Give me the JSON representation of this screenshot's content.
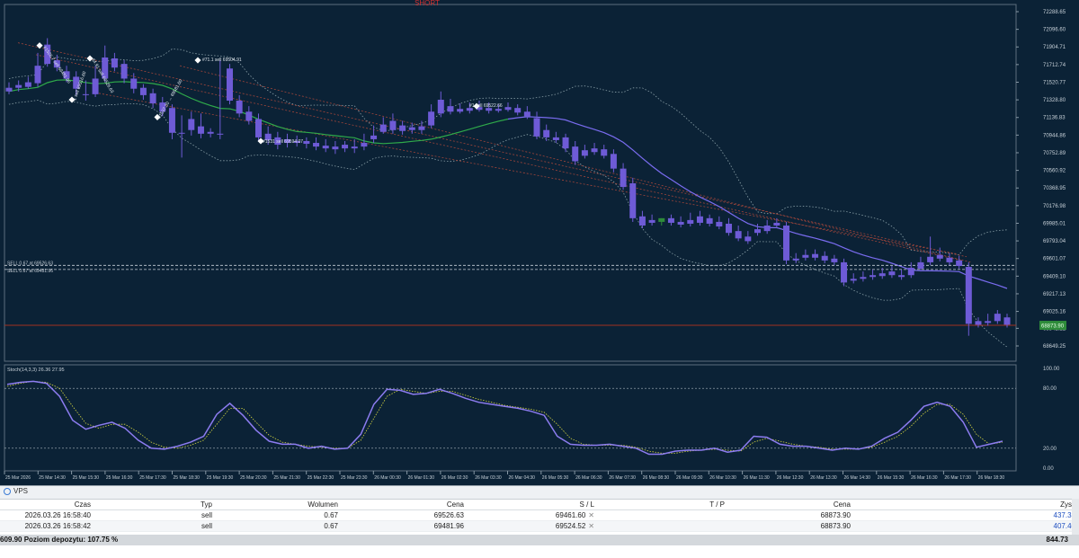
{
  "signal_label": "SHORT",
  "colors": {
    "background": "#0b2236",
    "bull": "#2e8b3a",
    "bear": "#6e5bd6",
    "ma_mid": "#2faa4a",
    "ma_trail": "#7a6cf0",
    "band": "#8aa0a8",
    "trend": "#a0453a",
    "stoch_main": "#8c7cf0",
    "stoch_signal": "#d8d840",
    "price_line": "#a03020",
    "bid_box": "#2e8b3a",
    "current_price_text": "#9fe0a0"
  },
  "price_scale": [
    "72288.65",
    "72096.60",
    "71904.71",
    "71712.74",
    "71520.77",
    "71328.80",
    "71136.83",
    "70944.86",
    "70752.89",
    "70560.92",
    "70368.95",
    "70176.98",
    "69985.01",
    "69793.04",
    "69601.07",
    "69409.10",
    "69217.13",
    "69025.16",
    "68841.22",
    "68649.25"
  ],
  "current_price": "68873.90",
  "stoch_scale": [
    "100.00",
    "80.00",
    "20.00",
    "0.00"
  ],
  "stoch_label": "Stoch(14,3,3) 26.36 27.95",
  "order_lines": [
    "SELL 0.67 at 69526.63",
    "SELL 0.67 at 69481.96"
  ],
  "trade_labels": [
    "#1526.7 sell 69481.96",
    "#4.91 sell 69526.63",
    "#71.1 sell 69504.91",
    "1 sell 69516.60",
    "#1537.30 → 69581.60",
    "#1 sell 69522.66",
    "#1531 sell 69594.07"
  ],
  "time_labels": [
    "25 Mar 2026",
    "25 Mar 14:30",
    "25 Mar 15:30",
    "25 Mar 16:30",
    "25 Mar 17:30",
    "25 Mar 18:30",
    "25 Mar 19:30",
    "25 Mar 20:30",
    "25 Mar 21:30",
    "25 Mar 22:30",
    "25 Mar 23:30",
    "26 Mar 00:30",
    "26 Mar 01:30",
    "26 Mar 02:30",
    "26 Mar 03:30",
    "26 Mar 04:30",
    "26 Mar 05:30",
    "26 Mar 06:30",
    "26 Mar 07:30",
    "26 Mar 08:30",
    "26 Mar 09:30",
    "26 Mar 10:30",
    "26 Mar 11:30",
    "26 Mar 12:30",
    "26 Mar 13:30",
    "26 Mar 14:30",
    "26 Mar 15:30",
    "26 Mar 16:30",
    "26 Mar 17:30",
    "26 Mar 18:30"
  ],
  "candles": [
    [
      71460,
      71520,
      71420,
      71390
    ],
    [
      71490,
      71540,
      71460,
      71420
    ],
    [
      71520,
      71580,
      71470,
      71450
    ],
    [
      71700,
      71840,
      71510,
      71470
    ],
    [
      71930,
      72000,
      71720,
      71690
    ],
    [
      71760,
      71820,
      71680,
      71640
    ],
    [
      71640,
      71700,
      71560,
      71520
    ],
    [
      71580,
      71640,
      71450,
      71380
    ],
    [
      71390,
      71540,
      71380,
      71320
    ],
    [
      71560,
      71700,
      71390,
      71360
    ],
    [
      71790,
      71920,
      71560,
      71520
    ],
    [
      71780,
      71840,
      71680,
      71640
    ],
    [
      71720,
      71760,
      71560,
      71510
    ],
    [
      71560,
      71620,
      71450,
      71400
    ],
    [
      71460,
      71500,
      71380,
      71330
    ],
    [
      71400,
      71450,
      71290,
      71240
    ],
    [
      71300,
      71360,
      71200,
      71150
    ],
    [
      71240,
      71280,
      70970,
      70900
    ],
    [
      70970,
      71160,
      70960,
      70700
    ],
    [
      71120,
      71200,
      71000,
      70940
    ],
    [
      71040,
      71180,
      70960,
      70910
    ],
    [
      70980,
      71020,
      70960,
      70920
    ],
    [
      70960,
      71760,
      70950,
      70900
    ],
    [
      71670,
      71720,
      71320,
      71280
    ],
    [
      71320,
      71380,
      71180,
      71140
    ],
    [
      71200,
      71260,
      71100,
      71060
    ],
    [
      71120,
      71180,
      70920,
      70880
    ],
    [
      70960,
      71040,
      70890,
      70840
    ],
    [
      70920,
      70980,
      70840,
      70790
    ],
    [
      70900,
      70960,
      70860,
      70810
    ],
    [
      70880,
      70940,
      70860,
      70820
    ],
    [
      70880,
      70920,
      70850,
      70800
    ],
    [
      70860,
      70920,
      70820,
      70780
    ],
    [
      70830,
      70900,
      70800,
      70760
    ],
    [
      70820,
      70880,
      70790,
      70740
    ],
    [
      70840,
      70880,
      70800,
      70760
    ],
    [
      70820,
      70900,
      70800,
      70750
    ],
    [
      70860,
      70960,
      70820,
      70780
    ],
    [
      70940,
      71050,
      70900,
      70860
    ],
    [
      71060,
      71140,
      70980,
      70960
    ],
    [
      71100,
      71180,
      71000,
      70960
    ],
    [
      71050,
      71100,
      70990,
      70950
    ],
    [
      71030,
      71080,
      71000,
      70960
    ],
    [
      71040,
      71100,
      71000,
      70960
    ],
    [
      71200,
      71280,
      71050,
      71020
    ],
    [
      71330,
      71420,
      71180,
      71140
    ],
    [
      71260,
      71340,
      71200,
      71170
    ],
    [
      71230,
      71290,
      71200,
      71180
    ],
    [
      71240,
      71300,
      71210,
      71180
    ],
    [
      71250,
      71320,
      71220,
      71200
    ],
    [
      71240,
      71300,
      71210,
      71180
    ],
    [
      71230,
      71280,
      71210,
      71190
    ],
    [
      71250,
      71300,
      71220,
      71200
    ],
    [
      71240,
      71280,
      71190,
      71160
    ],
    [
      71200,
      71260,
      71150,
      71120
    ],
    [
      71130,
      71200,
      70930,
      70900
    ],
    [
      71000,
      71060,
      70920,
      70880
    ],
    [
      70920,
      70980,
      70890,
      70860
    ],
    [
      70920,
      70960,
      70800,
      70760
    ],
    [
      70820,
      70880,
      70660,
      70620
    ],
    [
      70780,
      70840,
      70720,
      70690
    ],
    [
      70800,
      70860,
      70760,
      70730
    ],
    [
      70790,
      70840,
      70720,
      70690
    ],
    [
      70740,
      70790,
      70580,
      70540
    ],
    [
      70580,
      70640,
      70380,
      70350
    ],
    [
      70420,
      70480,
      70040,
      70000
    ],
    [
      70060,
      70120,
      69960,
      69930
    ],
    [
      70020,
      70080,
      69990,
      69960
    ],
    [
      70000,
      70040,
      70040,
      69960
    ],
    [
      70040,
      70080,
      69990,
      69960
    ],
    [
      70000,
      70060,
      69970,
      69940
    ],
    [
      70020,
      70100,
      69980,
      69950
    ],
    [
      70060,
      70120,
      69990,
      69960
    ],
    [
      70040,
      70080,
      69980,
      69950
    ],
    [
      70000,
      70060,
      69950,
      69920
    ],
    [
      69980,
      70040,
      69880,
      69850
    ],
    [
      69900,
      69960,
      69820,
      69790
    ],
    [
      69840,
      69900,
      69790,
      69760
    ],
    [
      69920,
      69980,
      69880,
      69850
    ],
    [
      69960,
      70020,
      69900,
      69870
    ],
    [
      69990,
      70040,
      69960,
      69930
    ],
    [
      69960,
      70000,
      69580,
      69540
    ],
    [
      69600,
      69660,
      69580,
      69550
    ],
    [
      69640,
      69700,
      69610,
      69580
    ],
    [
      69650,
      69700,
      69610,
      69580
    ],
    [
      69630,
      69680,
      69580,
      69550
    ],
    [
      69600,
      69640,
      69560,
      69530
    ],
    [
      69560,
      69600,
      69340,
      69300
    ],
    [
      69380,
      69440,
      69360,
      69330
    ],
    [
      69400,
      69460,
      69380,
      69350
    ],
    [
      69420,
      69480,
      69400,
      69370
    ],
    [
      69440,
      69500,
      69410,
      69380
    ],
    [
      69460,
      69520,
      69420,
      69390
    ],
    [
      69420,
      69480,
      69400,
      69370
    ],
    [
      69500,
      69560,
      69420,
      69390
    ],
    [
      69560,
      69620,
      69490,
      69460
    ],
    [
      69620,
      69840,
      69560,
      69530
    ],
    [
      69640,
      69720,
      69600,
      69570
    ],
    [
      69610,
      69660,
      69560,
      69530
    ],
    [
      69580,
      69630,
      69520,
      69490
    ],
    [
      69510,
      69560,
      68890,
      68760
    ],
    [
      68920,
      68960,
      68880,
      68850
    ],
    [
      68920,
      69000,
      68900,
      68870
    ],
    [
      69000,
      69040,
      68920,
      68890
    ],
    [
      68960,
      69000,
      68880,
      68850
    ]
  ],
  "stoch_main": [
    84,
    86,
    87,
    85,
    72,
    48,
    39,
    43,
    46,
    40,
    28,
    20,
    19,
    22,
    26,
    32,
    54,
    65,
    53,
    38,
    27,
    24,
    24,
    20,
    22,
    19,
    20,
    34,
    64,
    79,
    78,
    74,
    75,
    79,
    75,
    70,
    66,
    64,
    62,
    60,
    57,
    53,
    32,
    24,
    23,
    23,
    24,
    22,
    20,
    14,
    14,
    17,
    18,
    18,
    20,
    16,
    18,
    32,
    31,
    24,
    22,
    22,
    20,
    18,
    20,
    19,
    22,
    30,
    36,
    48,
    62,
    66,
    62,
    46,
    21,
    24,
    27
  ],
  "stoch_signal": [
    82,
    85,
    87,
    86,
    80,
    62,
    45,
    40,
    44,
    44,
    36,
    26,
    21,
    20,
    23,
    28,
    44,
    60,
    60,
    46,
    33,
    26,
    24,
    22,
    21,
    20,
    20,
    28,
    50,
    72,
    79,
    77,
    75,
    77,
    77,
    73,
    69,
    66,
    63,
    61,
    59,
    56,
    44,
    30,
    24,
    23,
    23,
    23,
    21,
    17,
    15,
    15,
    17,
    18,
    19,
    18,
    17,
    26,
    30,
    27,
    24,
    22,
    21,
    19,
    19,
    19,
    21,
    26,
    32,
    42,
    55,
    64,
    64,
    54,
    34,
    24,
    26
  ],
  "terminal": {
    "tab": "VPS",
    "headers": [
      "Czas",
      "Typ",
      "Wolumen",
      "Cena",
      "S / L",
      "T / P",
      "Cena",
      "Zysk"
    ],
    "rows": [
      {
        "time": "2026.03.26 16:58:40",
        "type": "sell",
        "volume": "0.67",
        "price": "69526.63",
        "sl": "69461.60",
        "tp": "",
        "cur": "68873.90",
        "profit": "437.33"
      },
      {
        "time": "2026.03.26 16:58:42",
        "type": "sell",
        "volume": "0.67",
        "price": "69481.96",
        "sl": "69524.52",
        "tp": "",
        "cur": "68873.90",
        "profit": "407.40"
      }
    ],
    "summary_left": "609.90  Poziom depozytu: 107.75 %",
    "summary_right": "844.73"
  }
}
